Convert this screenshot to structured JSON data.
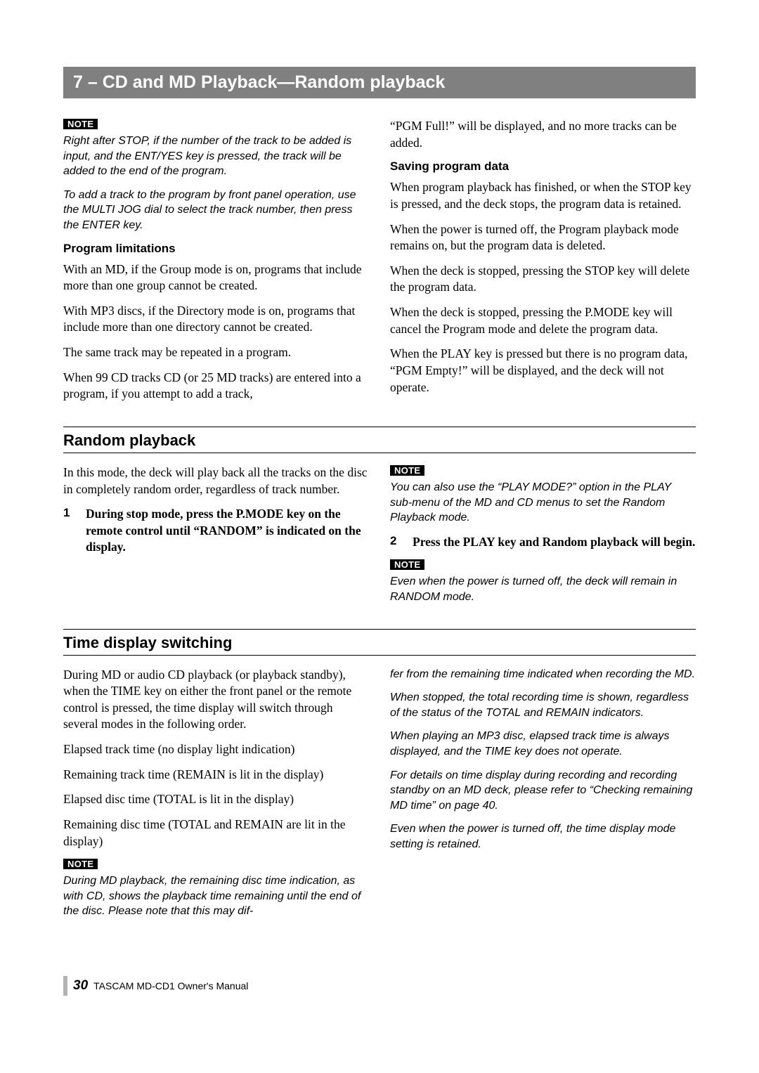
{
  "chapter_title": "7 – CD and MD Playback—Random playback",
  "note_label": "NOTE",
  "section1": {
    "left": {
      "note1": "Right after STOP, if the number of the track to be added is input, and the ENT/YES key is pressed, the track will be added to the end of the program.",
      "note2": "To add a track to the program by front panel operation, use the MULTI JOG dial to select the track number, then press the ENTER key.",
      "sub1_title": "Program limitations",
      "sub1_p1": "With an MD, if the Group mode is on, programs that include more than one group cannot be created.",
      "sub1_p2": "With MP3 discs, if the Directory mode is on, programs that include more than one directory cannot be created.",
      "sub1_p3": "The same track may be repeated in a program.",
      "sub1_p4": "When 99 CD tracks CD (or 25 MD tracks) are entered into a program, if you attempt to add a track,"
    },
    "right": {
      "p1": "“PGM Full!” will be displayed, and no more tracks can be added.",
      "sub1_title": "Saving program data",
      "sub1_p1": "When program playback has finished, or when the STOP key is pressed, and the deck stops, the program data is retained.",
      "sub1_p2": "When the power is turned off, the Program playback mode remains on, but the program data is deleted.",
      "sub1_p3": "When the deck is stopped, pressing the STOP key will delete the program data.",
      "sub1_p4": "When the deck is stopped, pressing the P.MODE key will cancel the Program mode and delete the program data.",
      "sub1_p5": "When the PLAY key is pressed but there is no program data, “PGM Empty!” will be displayed, and the deck will not operate."
    }
  },
  "section2": {
    "title": "Random playback",
    "left": {
      "p1": "In this mode, the deck will play back all the tracks on the disc in completely random order, regardless of track number.",
      "step1_num": "1",
      "step1": "During stop mode, press the P.MODE key on the remote control until “RANDOM” is indicated on the display."
    },
    "right": {
      "note1": "You can also use the “PLAY MODE?” option in the PLAY sub-menu of the MD and CD menus to set the Random Playback mode.",
      "step2_num": "2",
      "step2": "Press the PLAY key and Random playback will begin.",
      "note2": "Even when the power is turned off, the deck will remain in RANDOM mode."
    }
  },
  "section3": {
    "title": "Time display switching",
    "left": {
      "p1": "During MD or audio CD playback (or playback standby), when the TIME key on either the front panel or the remote control is pressed, the time display will switch through several modes in the following order.",
      "p2": "Elapsed track time (no display light indication)",
      "p3": "Remaining track time (REMAIN is lit in the display)",
      "p4": "Elapsed disc time (TOTAL is lit in the display)",
      "p5": "Remaining disc time (TOTAL and REMAIN are lit in the display)",
      "note1": "During MD playback, the remaining disc time indication, as with CD, shows the playback time remaining until the end of the disc. Please note that this may dif-"
    },
    "right": {
      "note_cont": "fer from the remaining time indicated when recording the MD.",
      "note2": "When stopped, the total recording time is shown, regardless of the status of the TOTAL and REMAIN indicators.",
      "note3": "When playing an MP3 disc, elapsed track time is always displayed, and the TIME key does not operate.",
      "note4": "For details on time display during recording and recording standby on an MD deck, please refer to “Checking remaining MD time” on page 40.",
      "note5": "Even when the power is turned off, the time display mode setting is retained."
    }
  },
  "footer": {
    "page_number": "30",
    "manual": "TASCAM MD-CD1 Owner's Manual"
  }
}
